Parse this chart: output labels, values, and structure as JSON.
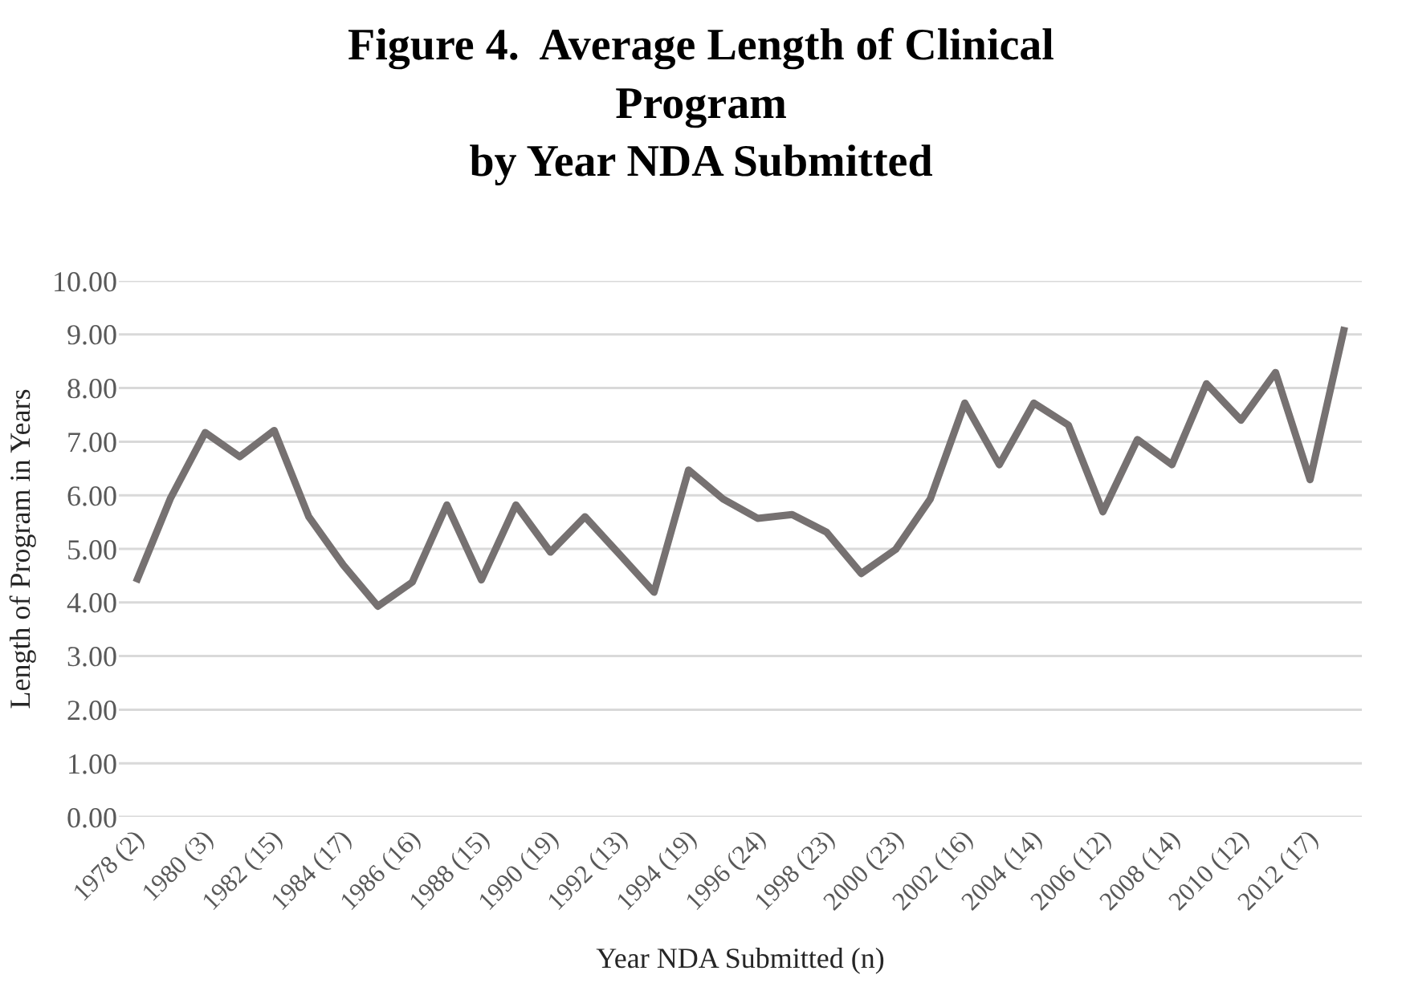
{
  "chart_data": {
    "type": "line",
    "title": "Figure 4.  Average Length of Clinical Program\nby Year NDA Submitted",
    "xlabel": "Year NDA Submitted (n)",
    "ylabel": "Length of Program in Years",
    "categories": [
      "1978 (2)",
      null,
      "1980 (3)",
      null,
      "1982 (15)",
      null,
      "1984 (17)",
      null,
      "1986 (16)",
      null,
      "1988 (15)",
      null,
      "1990 (19)",
      null,
      "1992 (13)",
      null,
      "1994 (19)",
      null,
      "1996 (24)",
      null,
      "1998 (23)",
      null,
      "2000 (23)",
      null,
      "2002 (16)",
      null,
      "2004 (14)",
      null,
      "2006 (12)",
      null,
      "2008 (14)",
      null,
      "2010 (12)",
      null,
      "2012 (17)",
      null
    ],
    "series": [
      {
        "color": "#767171",
        "values": [
          4.38,
          5.95,
          7.17,
          6.72,
          7.21,
          5.6,
          4.7,
          3.93,
          4.38,
          5.82,
          4.42,
          5.82,
          4.94,
          5.6,
          4.9,
          4.19,
          6.47,
          5.93,
          5.57,
          5.64,
          5.31,
          4.54,
          4.99,
          5.93,
          7.72,
          6.57,
          7.72,
          7.31,
          5.69,
          7.04,
          6.57,
          8.08,
          7.4,
          8.29,
          6.29,
          9.14
        ]
      }
    ],
    "ylim": [
      0,
      10
    ],
    "yticks": [
      {
        "value": 0,
        "label": "0.00"
      },
      {
        "value": 1,
        "label": "1.00"
      },
      {
        "value": 2,
        "label": "2.00"
      },
      {
        "value": 3,
        "label": "3.00"
      },
      {
        "value": 4,
        "label": "4.00"
      },
      {
        "value": 5,
        "label": "5.00"
      },
      {
        "value": 6,
        "label": "6.00"
      },
      {
        "value": 7,
        "label": "7.00"
      },
      {
        "value": 8,
        "label": "8.00"
      },
      {
        "value": 9,
        "label": "9.00"
      },
      {
        "value": 10,
        "label": "10.00"
      }
    ],
    "grid": "y",
    "marker": "none",
    "line_style": "solid"
  }
}
